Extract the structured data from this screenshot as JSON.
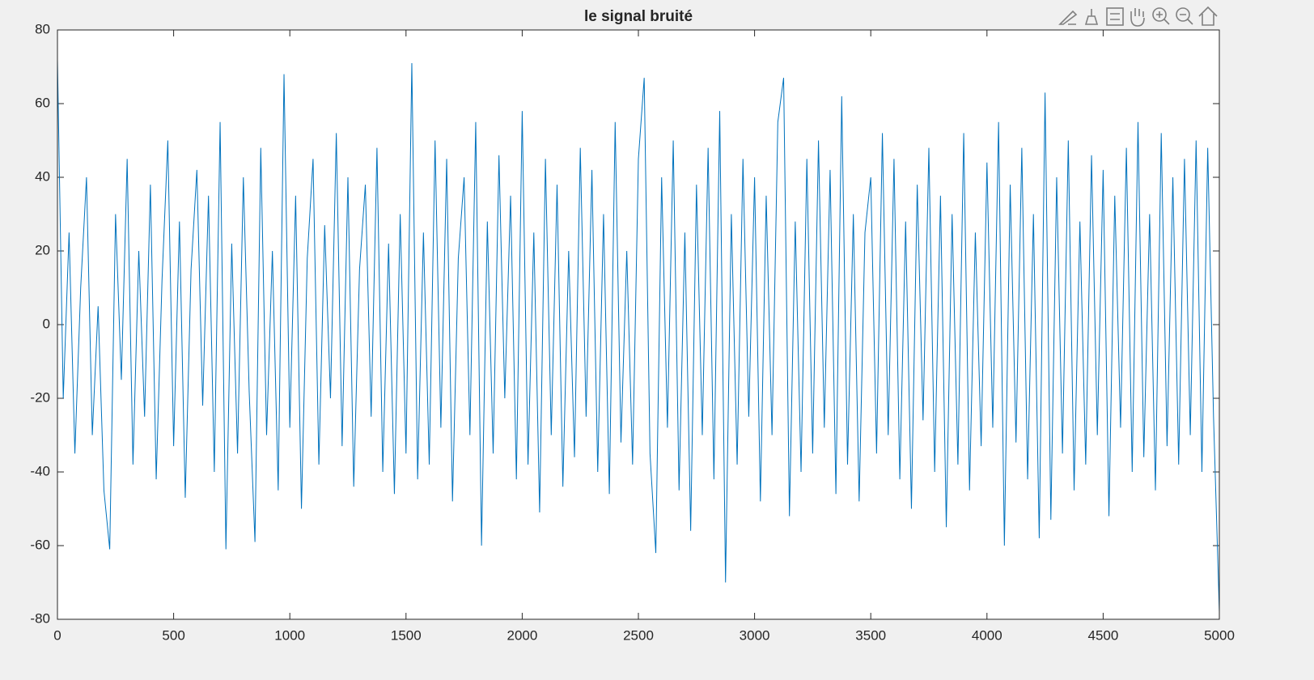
{
  "chart_data": {
    "type": "line",
    "title": "le signal bruité",
    "x": [
      0,
      25,
      50,
      75,
      100,
      125,
      150,
      175,
      200,
      225,
      250,
      275,
      300,
      325,
      350,
      375,
      400,
      425,
      450,
      475,
      500,
      525,
      550,
      575,
      600,
      625,
      650,
      675,
      700,
      725,
      750,
      775,
      800,
      825,
      850,
      875,
      900,
      925,
      950,
      975,
      1000,
      1025,
      1050,
      1075,
      1100,
      1125,
      1150,
      1175,
      1200,
      1225,
      1250,
      1275,
      1300,
      1325,
      1350,
      1375,
      1400,
      1425,
      1450,
      1475,
      1500,
      1525,
      1550,
      1575,
      1600,
      1625,
      1650,
      1675,
      1700,
      1725,
      1750,
      1775,
      1800,
      1825,
      1850,
      1875,
      1900,
      1925,
      1950,
      1975,
      2000,
      2025,
      2050,
      2075,
      2100,
      2125,
      2150,
      2175,
      2200,
      2225,
      2250,
      2275,
      2300,
      2325,
      2350,
      2375,
      2400,
      2425,
      2450,
      2475,
      2500,
      2525,
      2550,
      2575,
      2600,
      2625,
      2650,
      2675,
      2700,
      2725,
      2750,
      2775,
      2800,
      2825,
      2850,
      2875,
      2900,
      2925,
      2950,
      2975,
      3000,
      3025,
      3050,
      3075,
      3100,
      3125,
      3150,
      3175,
      3200,
      3225,
      3250,
      3275,
      3300,
      3325,
      3350,
      3375,
      3400,
      3425,
      3450,
      3475,
      3500,
      3525,
      3550,
      3575,
      3600,
      3625,
      3650,
      3675,
      3700,
      3725,
      3750,
      3775,
      3800,
      3825,
      3850,
      3875,
      3900,
      3925,
      3950,
      3975,
      4000,
      4025,
      4050,
      4075,
      4100,
      4125,
      4150,
      4175,
      4200,
      4225,
      4250,
      4275,
      4300,
      4325,
      4350,
      4375,
      4400,
      4425,
      4450,
      4475,
      4500,
      4525,
      4550,
      4575,
      4600,
      4625,
      4650,
      4675,
      4700,
      4725,
      4750,
      4775,
      4800,
      4825,
      4850,
      4875,
      4900,
      4925,
      4950,
      4975,
      5000
    ],
    "series": [
      {
        "color": "#0072bd",
        "values": [
          72,
          -20,
          25,
          -35,
          10,
          40,
          -30,
          5,
          -45,
          -61,
          30,
          -15,
          45,
          -38,
          20,
          -25,
          38,
          -42,
          12,
          50,
          -33,
          28,
          -47,
          15,
          42,
          -22,
          35,
          -40,
          55,
          -61,
          22,
          -35,
          40,
          -18,
          -59,
          48,
          -30,
          20,
          -45,
          68,
          -28,
          35,
          -50,
          18,
          45,
          -38,
          27,
          -20,
          52,
          -33,
          40,
          -44,
          15,
          38,
          -25,
          48,
          -40,
          22,
          -46,
          30,
          -35,
          71,
          -42,
          25,
          -38,
          50,
          -28,
          45,
          -48,
          18,
          40,
          -30,
          55,
          -60,
          28,
          -35,
          46,
          -20,
          35,
          -42,
          58,
          -38,
          25,
          -51,
          45,
          -30,
          38,
          -44,
          20,
          -36,
          48,
          -25,
          42,
          -40,
          30,
          -46,
          55,
          -32,
          20,
          -38,
          45,
          67,
          -35,
          -62,
          40,
          -28,
          50,
          -45,
          25,
          -56,
          38,
          -30,
          48,
          -42,
          58,
          -70,
          30,
          -38,
          45,
          -25,
          40,
          -48,
          35,
          -30,
          55,
          67,
          -52,
          28,
          -40,
          45,
          -35,
          50,
          -28,
          42,
          -46,
          62,
          -38,
          30,
          -48,
          25,
          40,
          -35,
          52,
          -30,
          45,
          -42,
          28,
          -50,
          38,
          -26,
          48,
          -40,
          35,
          -55,
          30,
          -38,
          52,
          -45,
          25,
          -33,
          44,
          -28,
          55,
          -60,
          38,
          -32,
          48,
          -42,
          30,
          -58,
          63,
          -53,
          40,
          -35,
          50,
          -45,
          28,
          -38,
          46,
          -30,
          42,
          -52,
          35,
          -28,
          48,
          -40,
          55,
          -36,
          30,
          -45,
          52,
          -33,
          40,
          -38,
          45,
          -30,
          50,
          -40,
          48,
          -25,
          -78
        ]
      }
    ],
    "xlim": [
      0,
      5000
    ],
    "xticks": [
      0,
      500,
      1000,
      1500,
      2000,
      2500,
      3000,
      3500,
      4000,
      4500,
      5000
    ],
    "ylim": [
      -80,
      80
    ],
    "yticks": [
      -80,
      -60,
      -40,
      -20,
      0,
      20,
      40,
      60,
      80
    ]
  }
}
